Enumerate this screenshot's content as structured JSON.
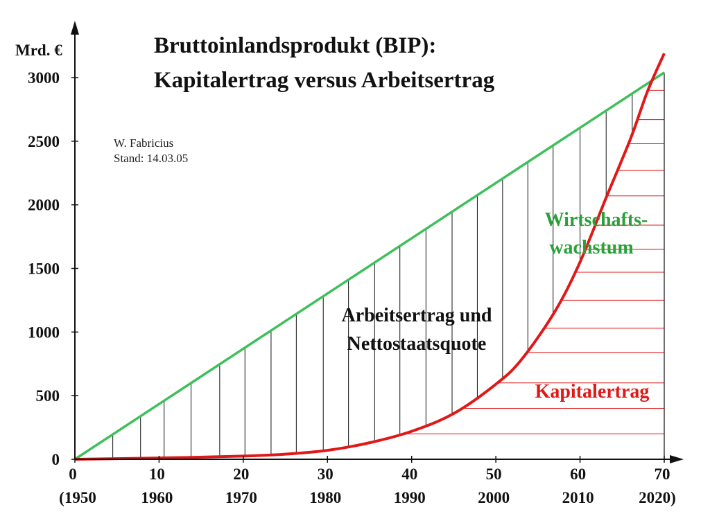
{
  "chart_data": {
    "type": "line",
    "title_lines": [
      "Bruttoinlandsprodukt (BIP):",
      "Kapitalertrag versus Arbeitsertrag"
    ],
    "author": "W. Fabricius",
    "stand": "Stand: 14.03.05",
    "ylabel": "Mrd. €",
    "xlim": [
      0,
      70
    ],
    "ylim": [
      0,
      3000
    ],
    "x_ticks": [
      0,
      10,
      20,
      30,
      40,
      50,
      60,
      70
    ],
    "x_tick_labels": [
      "0",
      "10",
      "20",
      "30",
      "40",
      "50",
      "60",
      "70"
    ],
    "x_year_labels": [
      "(1950",
      "1960",
      "1970",
      "1980",
      "1990",
      "2000",
      "2010",
      "2020)"
    ],
    "y_ticks": [
      0,
      500,
      1000,
      1500,
      2000,
      2500,
      3000
    ],
    "y_tick_labels": [
      "0",
      "500",
      "1000",
      "1500",
      "2000",
      "2500",
      "3000"
    ],
    "series": [
      {
        "name": "Wirtschafts-wachstum",
        "color": "#3dbf5a",
        "x": [
          0,
          70
        ],
        "y": [
          0,
          3040
        ]
      },
      {
        "name": "Kapitalertrag",
        "color": "#e01818",
        "x": [
          0,
          10,
          20,
          25,
          30,
          35,
          40,
          45,
          50,
          53,
          57,
          60,
          63,
          66,
          68,
          70
        ],
        "y": [
          0,
          10,
          25,
          40,
          70,
          130,
          220,
          360,
          590,
          780,
          1160,
          1550,
          2040,
          2520,
          2890,
          3190
        ]
      }
    ],
    "annotations": [
      {
        "lines": [
          "Arbeitsertrag und",
          "Nettostaatsquote"
        ],
        "color": "#111111"
      },
      {
        "lines": [
          "Wirtschafts-",
          "wachstum"
        ],
        "color": "#2aa038"
      },
      {
        "lines": [
          "Kapitalertrag"
        ],
        "color": "#e01818"
      }
    ],
    "hatch_vertical_x": [
      4.5,
      7.8,
      10.6,
      13.8,
      17.2,
      20.2,
      23.3,
      26.3,
      29.5,
      32.5,
      35.6,
      38.6,
      41.7,
      44.8,
      47.8,
      50.8,
      53.8,
      56.8,
      60,
      63.1,
      66.2,
      69.2
    ],
    "hatch_horizontal_y": [
      200,
      400,
      600,
      840,
      1030,
      1250,
      1470,
      1650,
      1840,
      2070,
      2270,
      2480,
      2670,
      2900
    ]
  }
}
